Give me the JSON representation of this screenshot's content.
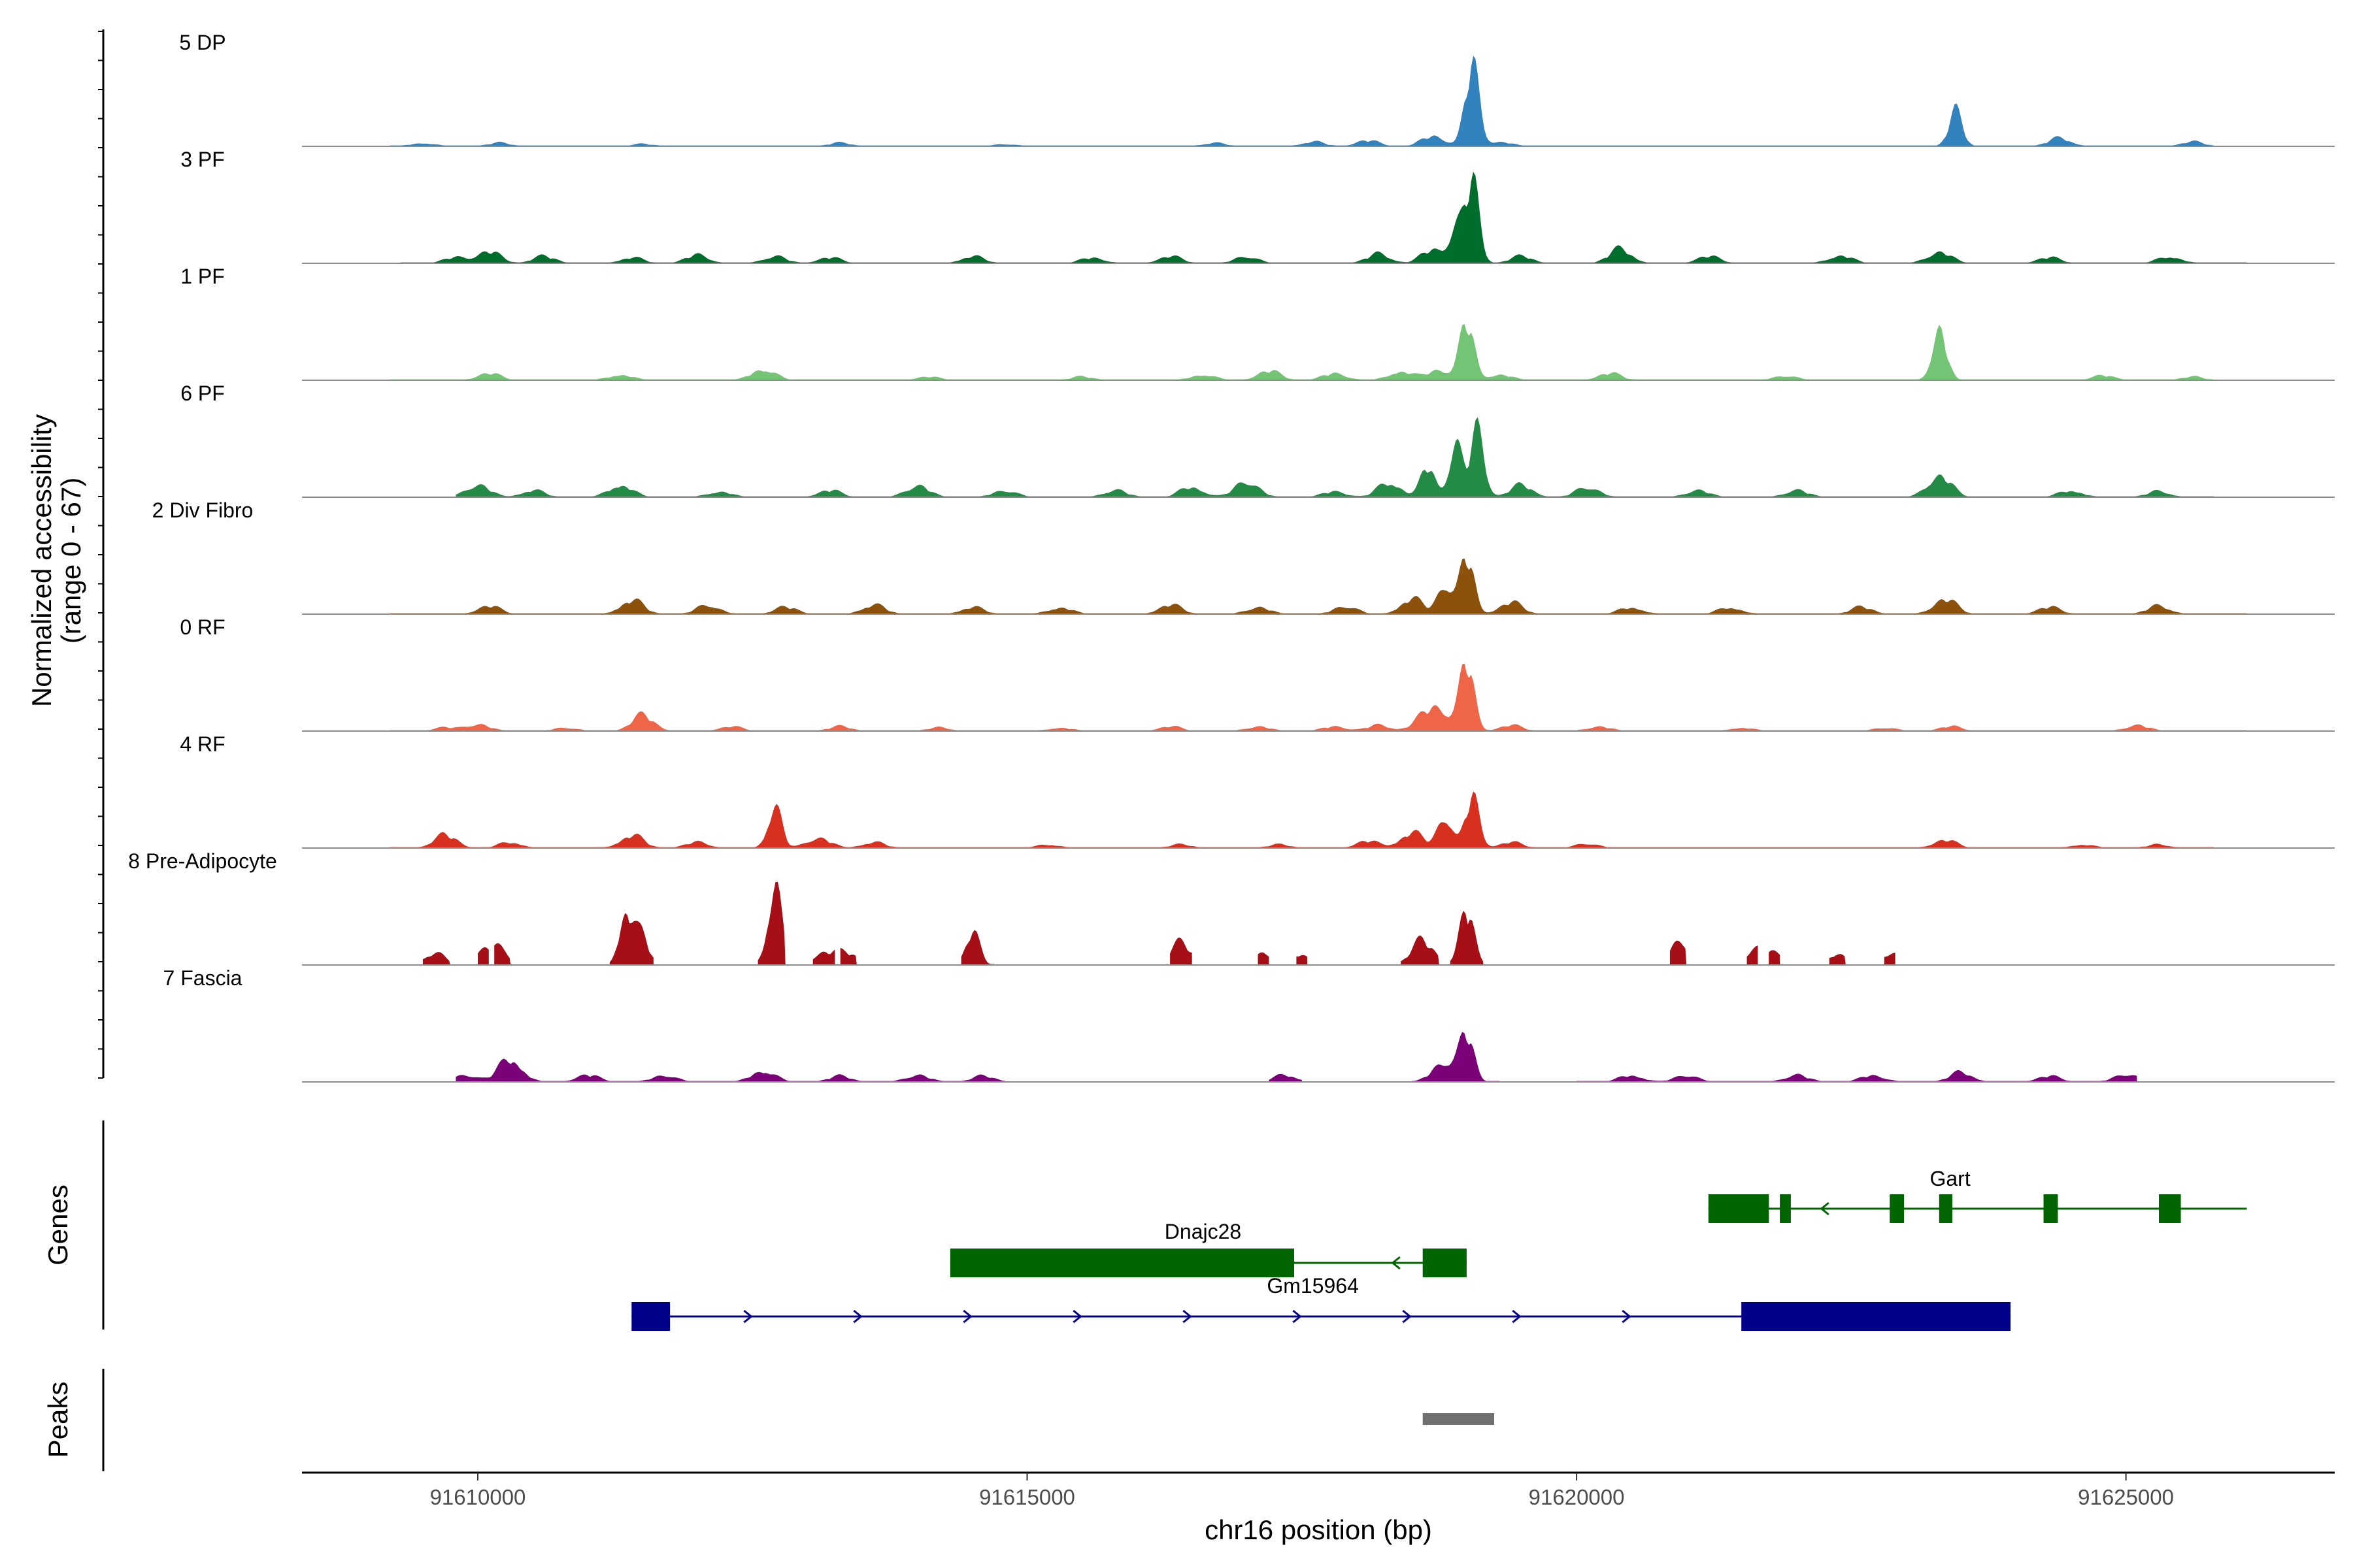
{
  "chart_data": {
    "type": "area",
    "chromosome": "chr16",
    "x_range": [
      91608400,
      91626900
    ],
    "xlabel": "chr16 position (bp)",
    "x_ticks": [
      {
        "value": 91610000,
        "label": "91610000"
      },
      {
        "value": 91615000,
        "label": "91615000"
      },
      {
        "value": 91620000,
        "label": "91620000"
      },
      {
        "value": 91625000,
        "label": "91625000"
      }
    ],
    "coverage_panel": {
      "ylabel": "Normalized accessibility",
      "ylabel_range": "(range 0 - 67)",
      "y_range": [
        0,
        67
      ]
    },
    "tracks": [
      {
        "name": "5 DP",
        "color": "#3182bd",
        "regions": [
          [
            91609200,
            91625800
          ]
        ],
        "peaks": [
          [
            91609500,
            3
          ],
          [
            91610200,
            3
          ],
          [
            91611500,
            2
          ],
          [
            91613300,
            3
          ],
          [
            91614800,
            2
          ],
          [
            91616700,
            3
          ],
          [
            91617600,
            4
          ],
          [
            91618100,
            5
          ],
          [
            91618700,
            9
          ],
          [
            91619050,
            67
          ],
          [
            91619300,
            4
          ],
          [
            91623450,
            28
          ],
          [
            91624400,
            7
          ],
          [
            91625600,
            4
          ]
        ]
      },
      {
        "name": "3 PF",
        "color": "#006d2c",
        "regions": [
          [
            91609300,
            91626100
          ]
        ],
        "peaks": [
          [
            91609800,
            5
          ],
          [
            91610100,
            10
          ],
          [
            91610600,
            6
          ],
          [
            91611400,
            5
          ],
          [
            91612000,
            7
          ],
          [
            91612700,
            6
          ],
          [
            91613200,
            5
          ],
          [
            91614500,
            6
          ],
          [
            91615600,
            5
          ],
          [
            91616300,
            6
          ],
          [
            91617000,
            6
          ],
          [
            91618200,
            8
          ],
          [
            91618700,
            12
          ],
          [
            91618900,
            26
          ],
          [
            91619050,
            67
          ],
          [
            91619500,
            6
          ],
          [
            91620400,
            12
          ],
          [
            91621200,
            6
          ],
          [
            91622400,
            7
          ],
          [
            91623300,
            10
          ],
          [
            91624300,
            5
          ],
          [
            91625400,
            6
          ]
        ]
      },
      {
        "name": "1 PF",
        "color": "#74c476",
        "regions": [
          [
            91609200,
            91625800
          ]
        ],
        "peaks": [
          [
            91610100,
            6
          ],
          [
            91611300,
            5
          ],
          [
            91612600,
            10
          ],
          [
            91614100,
            3
          ],
          [
            91615500,
            3
          ],
          [
            91616600,
            5
          ],
          [
            91617200,
            8
          ],
          [
            91617800,
            6
          ],
          [
            91618400,
            8
          ],
          [
            91618750,
            9
          ],
          [
            91619000,
            48
          ],
          [
            91619300,
            5
          ],
          [
            91620300,
            6
          ],
          [
            91621900,
            4
          ],
          [
            91623300,
            46
          ],
          [
            91624800,
            4
          ],
          [
            91625600,
            3
          ]
        ]
      },
      {
        "name": "6 PF",
        "color": "#238b45",
        "regions": [
          [
            91609800,
            91625800
          ]
        ],
        "peaks": [
          [
            91610000,
            11
          ],
          [
            91610500,
            6
          ],
          [
            91611300,
            11
          ],
          [
            91612200,
            5
          ],
          [
            91613200,
            6
          ],
          [
            91614000,
            10
          ],
          [
            91614800,
            6
          ],
          [
            91615800,
            6
          ],
          [
            91616500,
            9
          ],
          [
            91617000,
            14
          ],
          [
            91617800,
            5
          ],
          [
            91618300,
            13
          ],
          [
            91618650,
            26
          ],
          [
            91618900,
            43
          ],
          [
            91619100,
            55
          ],
          [
            91619500,
            10
          ],
          [
            91620100,
            9
          ],
          [
            91621100,
            6
          ],
          [
            91622000,
            6
          ],
          [
            91623300,
            19
          ],
          [
            91624500,
            6
          ],
          [
            91625300,
            5
          ]
        ]
      },
      {
        "name": "2 Div Fibro",
        "color": "#8c510a",
        "regions": [
          [
            91609200,
            91626100
          ]
        ],
        "peaks": [
          [
            91610100,
            7
          ],
          [
            91611400,
            12
          ],
          [
            91612100,
            8
          ],
          [
            91612800,
            6
          ],
          [
            91613600,
            8
          ],
          [
            91614500,
            6
          ],
          [
            91615300,
            6
          ],
          [
            91616300,
            8
          ],
          [
            91617100,
            6
          ],
          [
            91617900,
            7
          ],
          [
            91618500,
            13
          ],
          [
            91618800,
            27
          ],
          [
            91619000,
            48
          ],
          [
            91619400,
            10
          ],
          [
            91620500,
            6
          ],
          [
            91621400,
            6
          ],
          [
            91622600,
            6
          ],
          [
            91623350,
            13
          ],
          [
            91624300,
            6
          ],
          [
            91625300,
            7
          ]
        ]
      },
      {
        "name": "0 RF",
        "color": "#ef6548",
        "regions": [
          [
            91609200,
            91626100
          ]
        ],
        "peaks": [
          [
            91609700,
            3
          ],
          [
            91610000,
            6
          ],
          [
            91610800,
            3
          ],
          [
            91611500,
            13
          ],
          [
            91612300,
            4
          ],
          [
            91613300,
            4
          ],
          [
            91614200,
            3
          ],
          [
            91615300,
            3
          ],
          [
            91616300,
            4
          ],
          [
            91617100,
            4
          ],
          [
            91617800,
            4
          ],
          [
            91618200,
            5
          ],
          [
            91618600,
            8
          ],
          [
            91618750,
            18
          ],
          [
            91619000,
            57
          ],
          [
            91619400,
            5
          ],
          [
            91620200,
            4
          ],
          [
            91621500,
            3
          ],
          [
            91622800,
            3
          ],
          [
            91623400,
            4
          ],
          [
            91625100,
            5
          ]
        ]
      },
      {
        "name": "4 RF",
        "color": "#d7301f",
        "regions": [
          [
            91609200,
            91625800
          ]
        ],
        "peaks": [
          [
            91609700,
            11
          ],
          [
            91610300,
            5
          ],
          [
            91611400,
            11
          ],
          [
            91612000,
            5
          ],
          [
            91612700,
            35
          ],
          [
            91613100,
            9
          ],
          [
            91613600,
            5
          ],
          [
            91615200,
            3
          ],
          [
            91616400,
            3
          ],
          [
            91617300,
            3
          ],
          [
            91618100,
            6
          ],
          [
            91618500,
            13
          ],
          [
            91618800,
            29
          ],
          [
            91619050,
            42
          ],
          [
            91619400,
            5
          ],
          [
            91620100,
            4
          ],
          [
            91623350,
            7
          ],
          [
            91624600,
            3
          ],
          [
            91625300,
            3
          ]
        ]
      },
      {
        "name": "8 Pre-Adipocyte",
        "color": "#a50f15",
        "regions": [
          [
            91609500,
            91609750
          ],
          [
            91610000,
            91610100
          ],
          [
            91610150,
            91610300
          ],
          [
            91611200,
            91611600
          ],
          [
            91612550,
            91612800
          ],
          [
            91613050,
            91613250
          ],
          [
            91613300,
            91613450
          ],
          [
            91614400,
            91614700
          ],
          [
            91616300,
            91616500
          ],
          [
            91617100,
            91617200
          ],
          [
            91617450,
            91617550
          ],
          [
            91618400,
            91618750
          ],
          [
            91618850,
            91619150
          ],
          [
            91620850,
            91621000
          ],
          [
            91621550,
            91621650
          ],
          [
            91621750,
            91621850
          ],
          [
            91622300,
            91622450
          ],
          [
            91622800,
            91622900
          ]
        ],
        "peaks": [
          [
            91609600,
            10
          ],
          [
            91610050,
            10
          ],
          [
            91610200,
            10
          ],
          [
            91611350,
            48
          ],
          [
            91611500,
            22
          ],
          [
            91612700,
            67
          ],
          [
            91613150,
            10
          ],
          [
            91613380,
            10
          ],
          [
            91614500,
            28
          ],
          [
            91616400,
            18
          ],
          [
            91617150,
            10
          ],
          [
            91617500,
            10
          ],
          [
            91618600,
            20
          ],
          [
            91619000,
            47
          ],
          [
            91620950,
            20
          ],
          [
            91621600,
            10
          ],
          [
            91621800,
            10
          ],
          [
            91622380,
            10
          ],
          [
            91622850,
            10
          ]
        ]
      },
      {
        "name": "7 Fascia",
        "color": "#7a0177",
        "regions": [
          [
            91609800,
            91614800
          ],
          [
            91617200,
            91617500
          ],
          [
            91618500,
            91619300
          ],
          [
            91620000,
            91625100
          ]
        ],
        "peaks": [
          [
            91609900,
            6
          ],
          [
            91610300,
            20
          ],
          [
            91611000,
            6
          ],
          [
            91611700,
            6
          ],
          [
            91612600,
            10
          ],
          [
            91613300,
            5
          ],
          [
            91614000,
            6
          ],
          [
            91614600,
            5
          ],
          [
            91617350,
            6
          ],
          [
            91618800,
            18
          ],
          [
            91619000,
            38
          ],
          [
            91620500,
            6
          ],
          [
            91621000,
            6
          ],
          [
            91622000,
            6
          ],
          [
            91622700,
            6
          ],
          [
            91623500,
            8
          ],
          [
            91624300,
            5
          ],
          [
            91625000,
            7
          ]
        ]
      }
    ],
    "genes_panel": {
      "ylabel": "Genes",
      "genes": [
        {
          "name": "Gart",
          "strand": "-",
          "color": "#006400",
          "start": 91621200,
          "end": 91626100,
          "exons": [
            [
              91621200,
              91621750
            ],
            [
              91621850,
              91621950
            ],
            [
              91622850,
              91622980
            ],
            [
              91623300,
              91623420
            ],
            [
              91624250,
              91624380
            ],
            [
              91625300,
              91625500
            ]
          ]
        },
        {
          "name": "Dnajc28",
          "strand": "-",
          "color": "#006400",
          "start": 91614300,
          "end": 91619000,
          "exons": [
            [
              91614300,
              91617430
            ],
            [
              91618600,
              91619000
            ]
          ]
        },
        {
          "name": "Gm15964",
          "strand": "+",
          "color": "#00008b",
          "start": 91611400,
          "end": 91623950,
          "exons": [
            [
              91611400,
              91611750
            ],
            [
              91621500,
              91623950
            ]
          ]
        }
      ]
    },
    "peaks_panel": {
      "ylabel": "Peaks",
      "peaks": [
        [
          91618600,
          91619250
        ]
      ],
      "color": "#707070"
    }
  }
}
